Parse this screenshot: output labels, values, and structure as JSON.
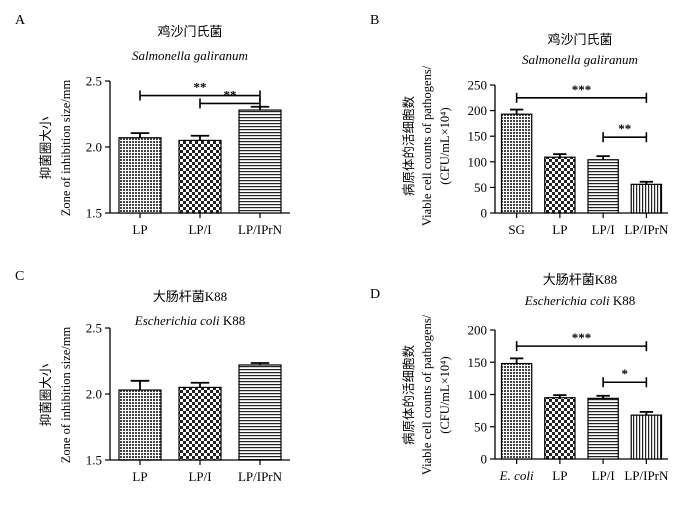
{
  "chart_data": [
    {
      "panel": "A",
      "type": "bar",
      "title": "鸡沙门氏菌",
      "subtitle": "Salmonella galiranum",
      "ylabel": [
        "抑菌圈大小",
        "Zone of inhibition size/mm"
      ],
      "categories": [
        "LP",
        "LP/I",
        "LP/IPrN"
      ],
      "values": [
        2.07,
        2.05,
        2.28
      ],
      "errors": [
        0.035,
        0.035,
        0.025
      ],
      "ylim": [
        1.5,
        2.5
      ],
      "yticks": [
        "1.5",
        "2.0",
        "2.5"
      ],
      "patterns": [
        "pat-dense",
        "pat-check",
        "pat-hline"
      ],
      "significance": [
        {
          "from": 0,
          "to": 2,
          "label": "**",
          "y": 2.39
        },
        {
          "from": 1,
          "to": 2,
          "label": "**",
          "y": 2.33
        }
      ]
    },
    {
      "panel": "B",
      "type": "bar",
      "title": "鸡沙门氏菌",
      "subtitle": "Salmonella galiranum",
      "ylabel": [
        "病原体的活细胞数",
        "Viable cell counts of pathogens/",
        "(CFU/mL×10⁴)"
      ],
      "categories": [
        "SG",
        "LP",
        "LP/I",
        "LP/IPrN"
      ],
      "values": [
        193,
        109,
        104,
        56
      ],
      "errors": [
        9,
        6,
        7,
        5
      ],
      "ylim": [
        0,
        250
      ],
      "yticks": [
        "0",
        "50",
        "100",
        "150",
        "200",
        "250"
      ],
      "patterns": [
        "pat-dense",
        "pat-check",
        "pat-hline",
        "pat-vline"
      ],
      "significance": [
        {
          "from": 0,
          "to": 3,
          "label": "***",
          "y": 225
        },
        {
          "from": 2,
          "to": 3,
          "label": "**",
          "y": 148
        }
      ]
    },
    {
      "panel": "C",
      "type": "bar",
      "title": "大肠杆菌K88",
      "subtitle": "Escherichia coli",
      "subtitle_suffix": " K88",
      "ylabel": [
        "抑菌圈大小",
        "Zone of inhibition size/mm"
      ],
      "categories": [
        "LP",
        "LP/I",
        "LP/IPrN"
      ],
      "values": [
        2.03,
        2.05,
        2.22
      ],
      "errors": [
        0.07,
        0.035,
        0.015
      ],
      "ylim": [
        1.5,
        2.5
      ],
      "yticks": [
        "1.5",
        "2.0",
        "2.5"
      ],
      "patterns": [
        "pat-dense",
        "pat-check",
        "pat-hline"
      ],
      "significance": []
    },
    {
      "panel": "D",
      "type": "bar",
      "title": "大肠杆菌K88",
      "subtitle": "Escherichia coli",
      "subtitle_suffix": " K88",
      "ylabel": [
        "病原体的活细胞数",
        "Viable cell counts of pathogens/",
        "(CFU/mL×10⁴)"
      ],
      "categories": [
        "E. coli",
        "LP",
        "LP/I",
        "LP/IPrN"
      ],
      "categories_italic": [
        true,
        false,
        false,
        false
      ],
      "values": [
        148,
        95,
        94,
        68
      ],
      "errors": [
        8,
        4,
        4,
        5
      ],
      "ylim": [
        0,
        200
      ],
      "yticks": [
        "0",
        "50",
        "100",
        "150",
        "200"
      ],
      "patterns": [
        "pat-dense",
        "pat-check",
        "pat-hline",
        "pat-vline"
      ],
      "significance": [
        {
          "from": 0,
          "to": 3,
          "label": "***",
          "y": 175
        },
        {
          "from": 2,
          "to": 3,
          "label": "*",
          "y": 119
        }
      ]
    }
  ]
}
